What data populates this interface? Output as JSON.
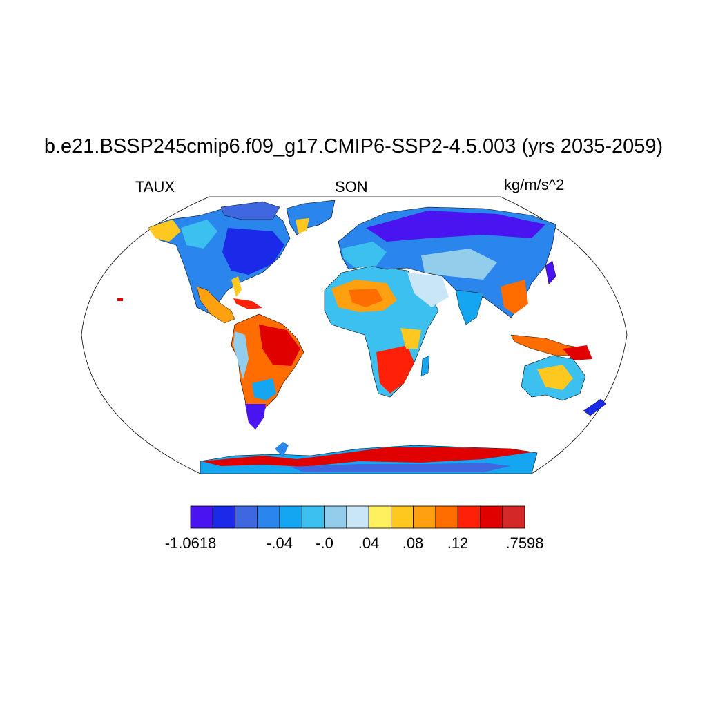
{
  "title": "b.e21.BSSP245cmip6.f09_g17.CMIP6-SSP2-4.5.003 (yrs 2035-2059)",
  "left_string": "TAUX",
  "center_string": "SON",
  "right_string": "kg/m/s^2",
  "colorbar": {
    "colors": [
      "#4a14f0",
      "#1a2ae8",
      "#3f68e0",
      "#2a86ec",
      "#14a6f0",
      "#3cc0f0",
      "#92cdec",
      "#c8e6f6",
      "#fff060",
      "#ffc820",
      "#ffa010",
      "#ff6c00",
      "#ff2008",
      "#e00000",
      "#d42828"
    ],
    "labels": [
      "-1.0618",
      "-.04",
      "-.0",
      ".04",
      ".08",
      ".12",
      ".7598"
    ]
  }
}
